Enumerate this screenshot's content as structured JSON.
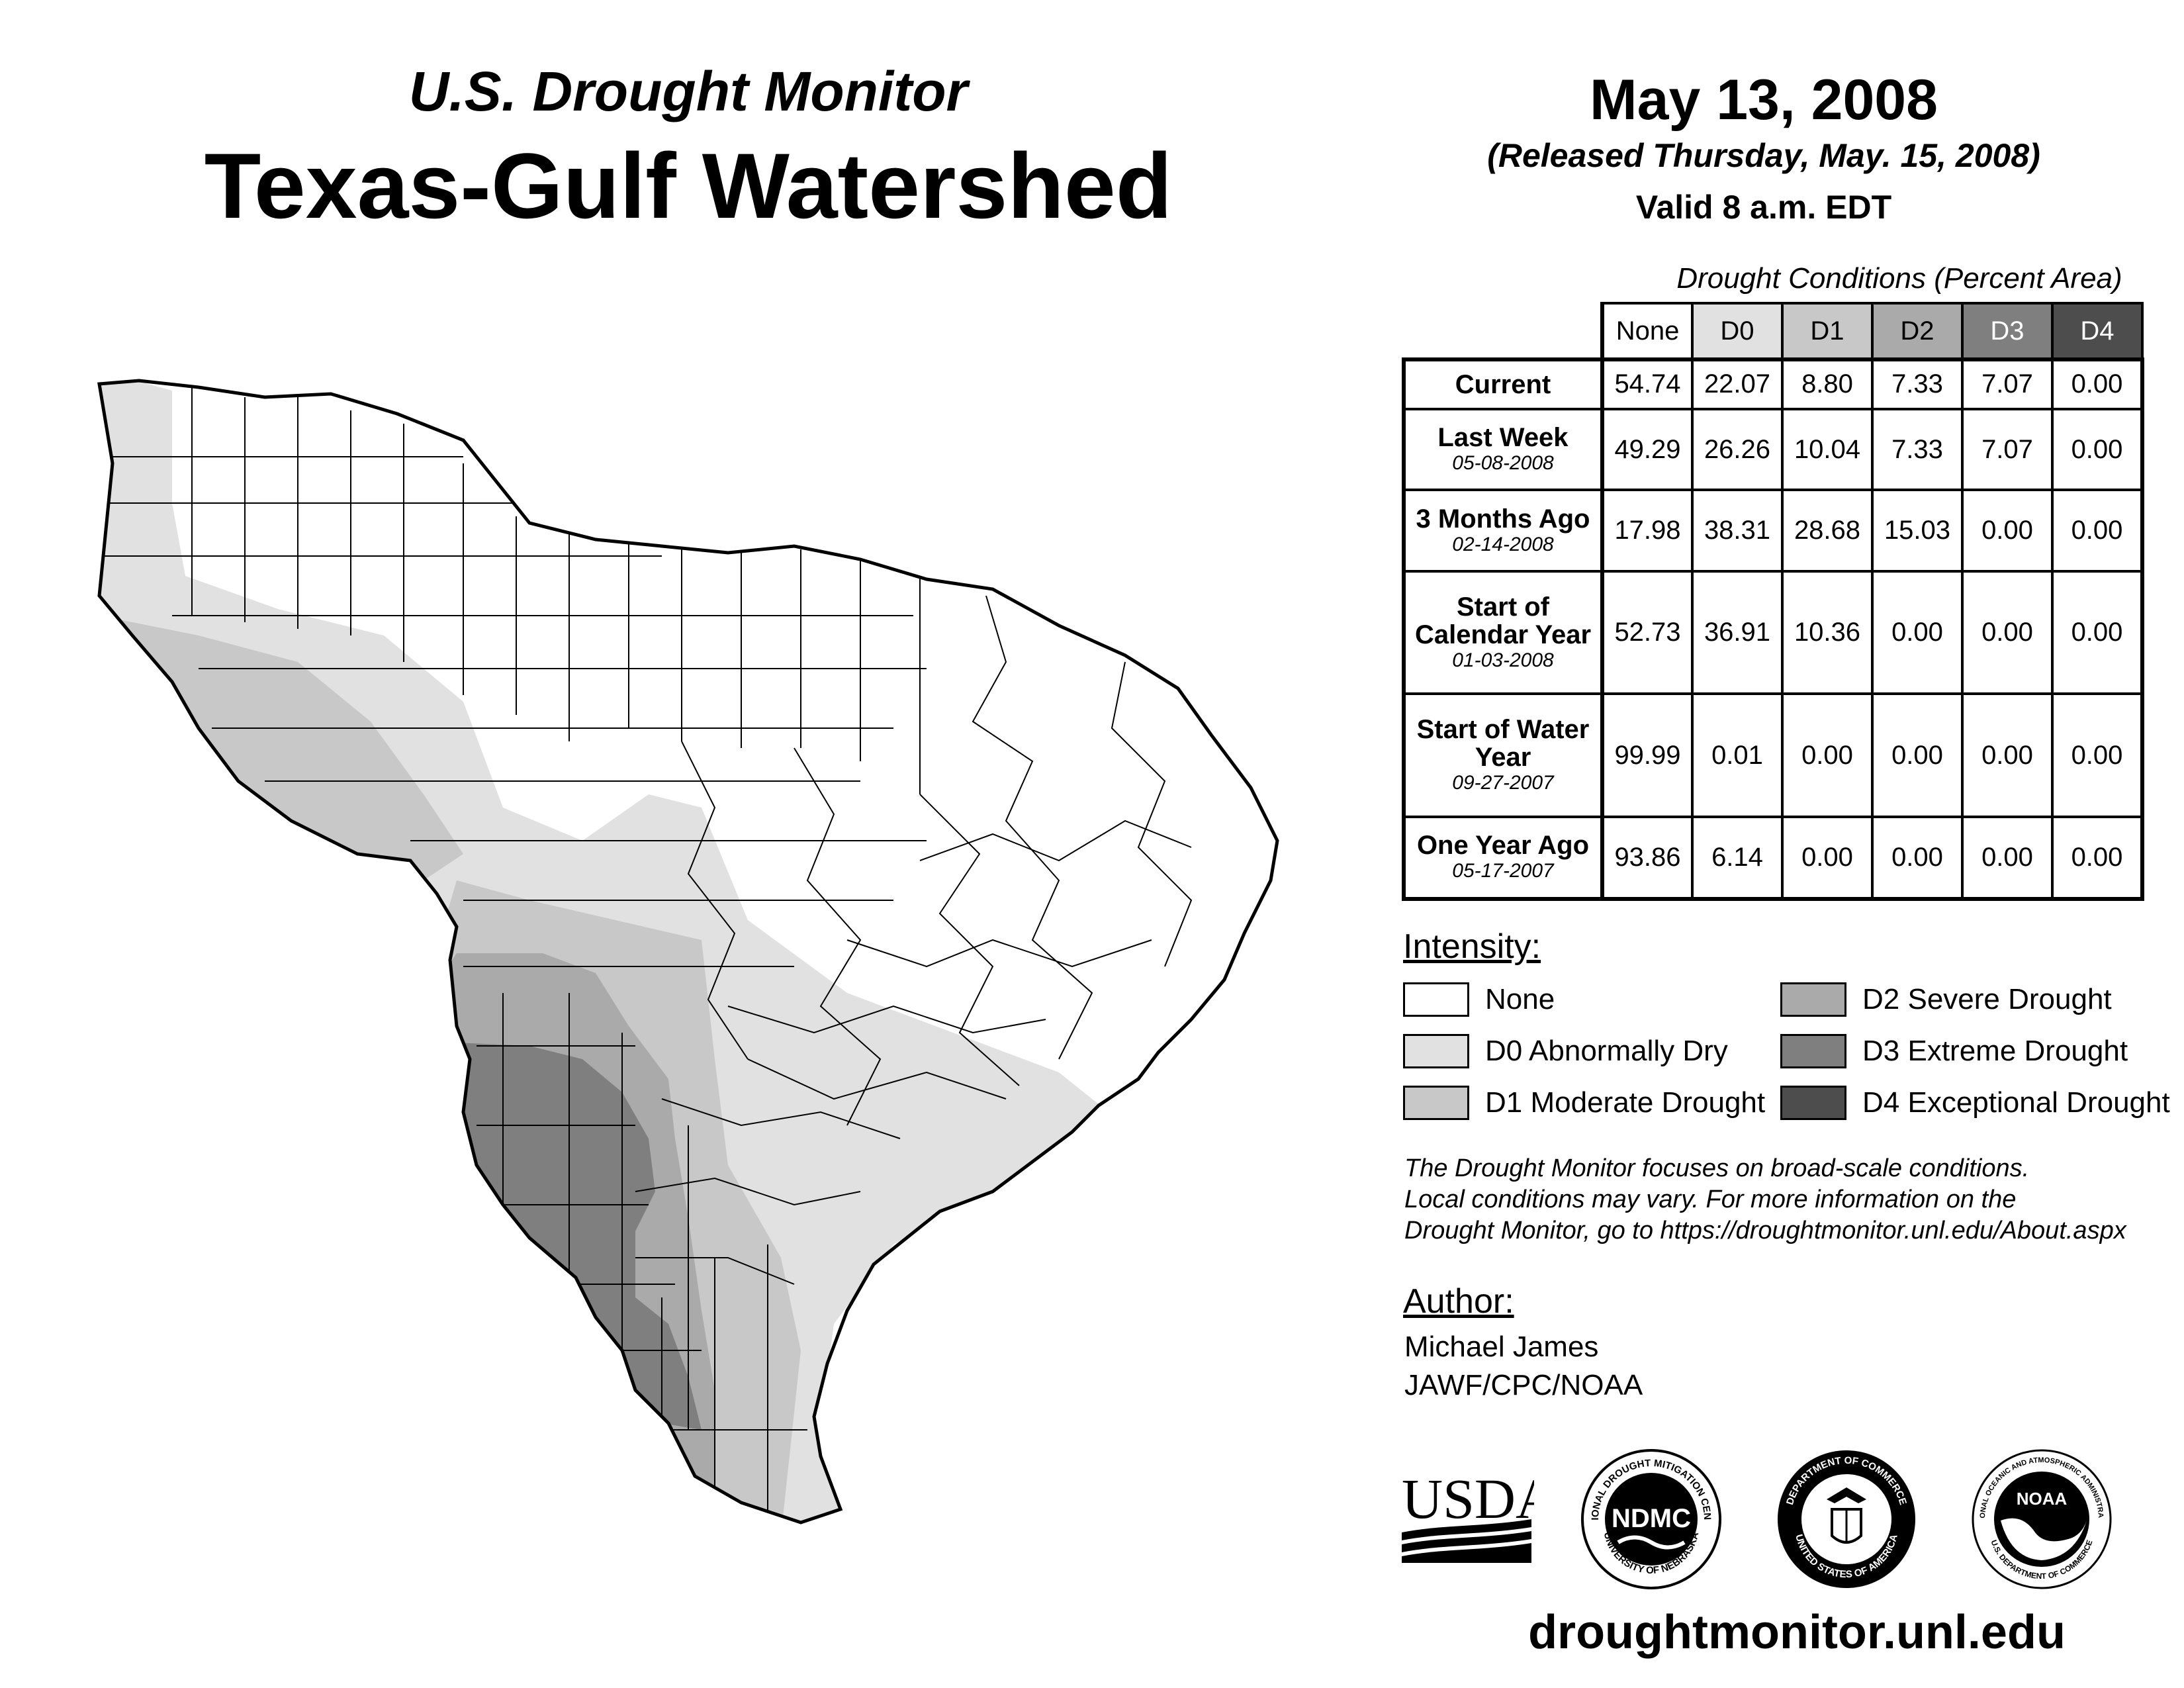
{
  "header": {
    "subtitle": "U.S. Drought Monitor",
    "title": "Texas-Gulf Watershed",
    "date": "May 13, 2008",
    "released": "(Released Thursday, May. 15, 2008)",
    "valid": "Valid 8 a.m. EDT"
  },
  "table": {
    "caption": "Drought Conditions (Percent Area)",
    "columns": [
      "None",
      "D0",
      "D1",
      "D2",
      "D3",
      "D4"
    ],
    "rows": [
      {
        "label": "Current",
        "date": "",
        "values": [
          "54.74",
          "22.07",
          "8.80",
          "7.33",
          "7.07",
          "0.00"
        ]
      },
      {
        "label": "Last Week",
        "date": "05-08-2008",
        "values": [
          "49.29",
          "26.26",
          "10.04",
          "7.33",
          "7.07",
          "0.00"
        ]
      },
      {
        "label": "3 Months Ago",
        "date": "02-14-2008",
        "values": [
          "17.98",
          "38.31",
          "28.68",
          "15.03",
          "0.00",
          "0.00"
        ]
      },
      {
        "label": "Start of Calendar Year",
        "date": "01-03-2008",
        "values": [
          "52.73",
          "36.91",
          "10.36",
          "0.00",
          "0.00",
          "0.00"
        ]
      },
      {
        "label": "Start of Water Year",
        "date": "09-27-2007",
        "values": [
          "99.99",
          "0.01",
          "0.00",
          "0.00",
          "0.00",
          "0.00"
        ]
      },
      {
        "label": "One Year Ago",
        "date": "05-17-2007",
        "values": [
          "93.86",
          "6.14",
          "0.00",
          "0.00",
          "0.00",
          "0.00"
        ]
      }
    ]
  },
  "legend": {
    "heading": "Intensity:",
    "items": [
      {
        "label": "None",
        "color": "#ffffff"
      },
      {
        "label": "D0 Abnormally Dry",
        "color": "#e1e1e1"
      },
      {
        "label": "D1 Moderate Drought",
        "color": "#c8c8c8"
      },
      {
        "label": "D2 Severe Drought",
        "color": "#aaaaaa"
      },
      {
        "label": "D3 Extreme Drought",
        "color": "#7f7f7f"
      },
      {
        "label": "D4 Exceptional Drought",
        "color": "#4d4d4d"
      }
    ]
  },
  "disclaimer": [
    "The Drought Monitor focuses on broad-scale conditions.",
    "Local conditions may vary. For more information on the",
    "Drought Monitor, go to https://droughtmonitor.unl.edu/About.aspx"
  ],
  "author": {
    "heading": "Author:",
    "name": "Michael James",
    "org": "JAWF/CPC/NOAA"
  },
  "logos": {
    "usda": "USDA",
    "ndmc": "NDMC",
    "ndmc_ring_top": "NATIONAL DROUGHT MITIGATION CENTER",
    "ndmc_ring_bottom": "UNIVERSITY OF NEBRASKA",
    "doc_ring_top": "DEPARTMENT OF COMMERCE",
    "doc_ring_bottom": "UNITED STATES OF AMERICA",
    "noaa": "NOAA",
    "noaa_ring_top": "NATIONAL OCEANIC AND ATMOSPHERIC ADMINISTRATION",
    "noaa_ring_bottom": "U.S. DEPARTMENT OF COMMERCE"
  },
  "website": "droughtmonitor.unl.edu",
  "colors": {
    "none": "#ffffff",
    "d0": "#e1e1e1",
    "d1": "#c8c8c8",
    "d2": "#aaaaaa",
    "d3": "#7f7f7f",
    "d4": "#4d4d4d"
  }
}
